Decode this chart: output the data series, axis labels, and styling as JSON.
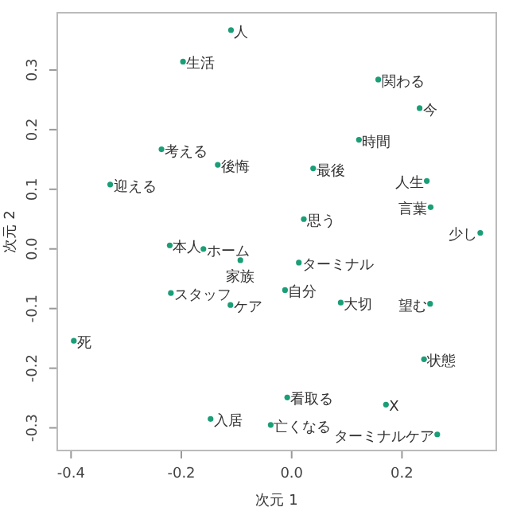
{
  "chart_data": {
    "type": "scatter",
    "xlabel": "次元 1",
    "ylabel": "次元 2",
    "xlim": [
      -0.425,
      0.371
    ],
    "ylim": [
      -0.338,
      0.396
    ],
    "xticks": [
      {
        "value": -0.4,
        "label": "-0.4"
      },
      {
        "value": -0.2,
        "label": "-0.2"
      },
      {
        "value": 0,
        "label": "0.0"
      },
      {
        "value": 0.2,
        "label": "0.2"
      }
    ],
    "yticks": [
      {
        "value": -0.3,
        "label": "-0.3"
      },
      {
        "value": -0.2,
        "label": "-0.2"
      },
      {
        "value": -0.1,
        "label": "-0.1"
      },
      {
        "value": 0,
        "label": "0.0"
      },
      {
        "value": 0.1,
        "label": "0.1"
      },
      {
        "value": 0.2,
        "label": "0.2"
      },
      {
        "value": 0.3,
        "label": "0.3"
      }
    ],
    "grid": false,
    "series": [
      {
        "color": "#1b9e77",
        "x": [
          -0.11,
          -0.197,
          -0.236,
          -0.134,
          -0.329,
          -0.221,
          -0.16,
          -0.093,
          -0.219,
          -0.111,
          -0.395,
          -0.147,
          0.157,
          0.232,
          0.122,
          0.039,
          0.245,
          0.252,
          0.022,
          0.342,
          0.013,
          -0.012,
          0.089,
          0.251,
          0.24,
          -0.008,
          0.171,
          -0.038,
          0.264
        ],
        "values": [
          0.367,
          0.314,
          0.167,
          0.141,
          0.108,
          0.006,
          0.0,
          -0.019,
          -0.074,
          -0.094,
          -0.154,
          -0.285,
          0.284,
          0.236,
          0.183,
          0.135,
          0.114,
          0.07,
          0.05,
          0.027,
          -0.023,
          -0.069,
          -0.09,
          -0.092,
          -0.185,
          -0.249,
          -0.261,
          -0.295,
          -0.311
        ]
      }
    ],
    "annotations": [
      {
        "text": "人",
        "x": -0.11,
        "y": 0.367
      },
      {
        "text": "生活",
        "x": -0.197,
        "y": 0.314
      },
      {
        "text": "考える",
        "x": -0.236,
        "y": 0.167
      },
      {
        "text": "後悔",
        "x": -0.134,
        "y": 0.141
      },
      {
        "text": "迎える",
        "x": -0.329,
        "y": 0.108
      },
      {
        "text": "本人",
        "x": -0.221,
        "y": 0.006
      },
      {
        "text": "ホーム",
        "x": -0.16,
        "y": 0.0
      },
      {
        "text": "家族",
        "x": -0.093,
        "y": -0.019
      },
      {
        "text": "スタッフ",
        "x": -0.219,
        "y": -0.074
      },
      {
        "text": "ケア",
        "x": -0.111,
        "y": -0.094
      },
      {
        "text": "死",
        "x": -0.395,
        "y": -0.154
      },
      {
        "text": "入居",
        "x": -0.147,
        "y": -0.285
      },
      {
        "text": "関わる",
        "x": 0.157,
        "y": 0.284
      },
      {
        "text": "今",
        "x": 0.232,
        "y": 0.236
      },
      {
        "text": "時間",
        "x": 0.122,
        "y": 0.183
      },
      {
        "text": "最後",
        "x": 0.039,
        "y": 0.135
      },
      {
        "text": "人生",
        "x": 0.245,
        "y": 0.114
      },
      {
        "text": "言葉",
        "x": 0.252,
        "y": 0.07
      },
      {
        "text": "思う",
        "x": 0.022,
        "y": 0.05
      },
      {
        "text": "少し",
        "x": 0.342,
        "y": 0.027
      },
      {
        "text": "ターミナル",
        "x": 0.013,
        "y": -0.023
      },
      {
        "text": "自分",
        "x": -0.012,
        "y": -0.069
      },
      {
        "text": "大切",
        "x": 0.089,
        "y": -0.09
      },
      {
        "text": "望む",
        "x": 0.251,
        "y": -0.092
      },
      {
        "text": "状態",
        "x": 0.24,
        "y": -0.185
      },
      {
        "text": "看取る",
        "x": -0.008,
        "y": -0.249
      },
      {
        "text": "X",
        "x": 0.171,
        "y": -0.261
      },
      {
        "text": "亡くなる",
        "x": -0.038,
        "y": -0.295
      },
      {
        "text": "ターミナルケア",
        "x": 0.264,
        "y": -0.311
      }
    ]
  }
}
